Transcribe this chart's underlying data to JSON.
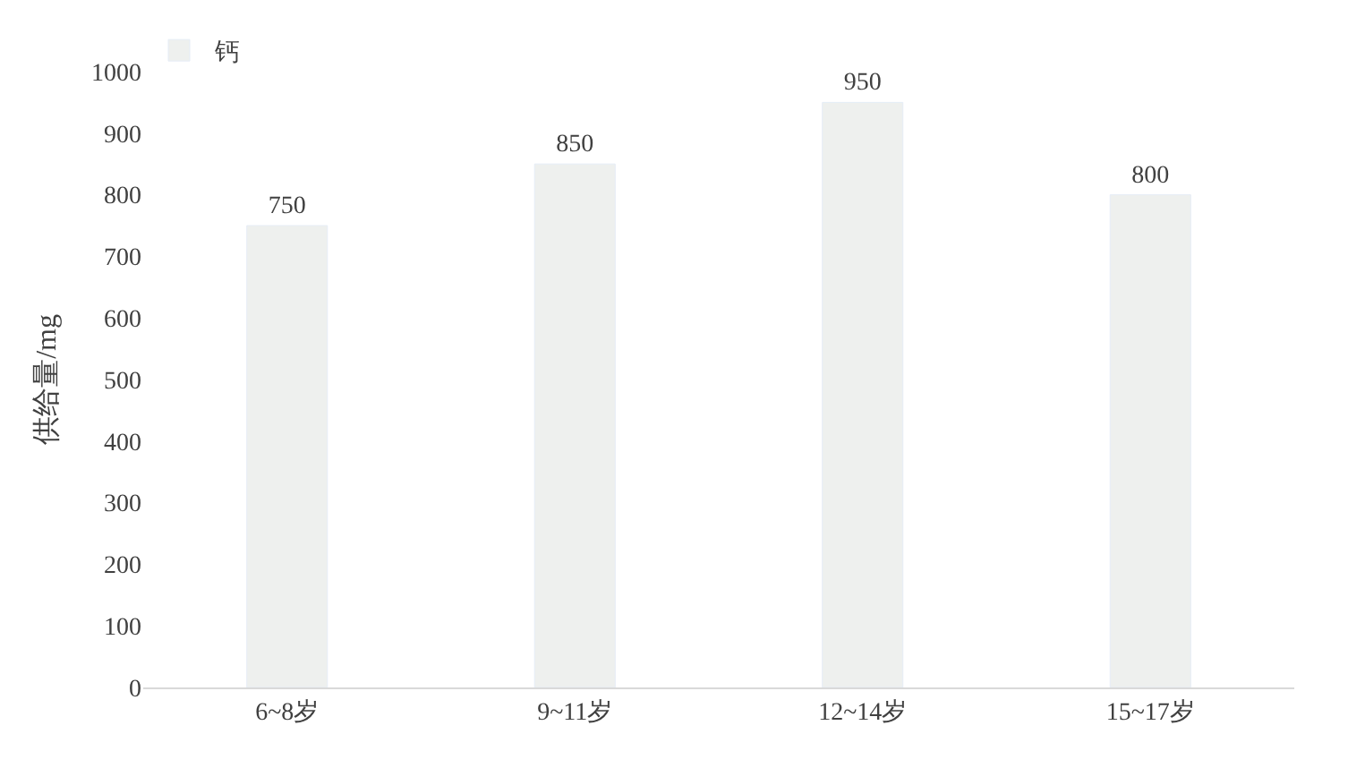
{
  "chart_data": {
    "type": "bar",
    "ylabel": "供给量/mg",
    "categories": [
      "6~8岁",
      "9~11岁",
      "12~14岁",
      "15~17岁"
    ],
    "series": [
      {
        "name": "钙",
        "color": "#eef0ee",
        "values": [
          750,
          850,
          950,
          800
        ]
      }
    ],
    "ylim": [
      0,
      1000
    ],
    "yticks": [
      0,
      100,
      200,
      300,
      400,
      500,
      600,
      700,
      800,
      900,
      1000
    ],
    "data_labels": true,
    "legend": "top left",
    "grid": false
  }
}
